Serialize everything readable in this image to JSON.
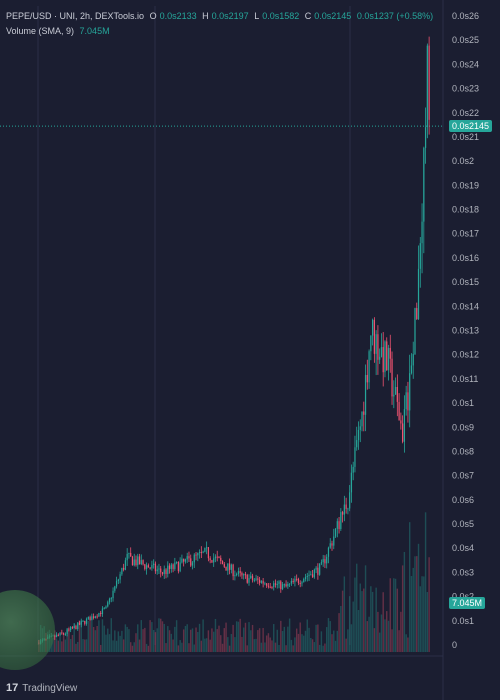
{
  "legend": {
    "symbol": "PEPE/USD · UNI, 2h, DEXTools.io",
    "open_label": "O",
    "open": "0.0s2133",
    "high_label": "H",
    "high": "0.0s2197",
    "low_label": "L",
    "low": "0.0s1582",
    "close_label": "C",
    "close": "0.0s2145",
    "change": "0.0s1237 (+0.58%)",
    "volume_label": "Volume (SMA, 9)",
    "volume_value": "7.045M"
  },
  "badges": {
    "price": "0.0s2145",
    "volume": "7.045M"
  },
  "branding": {
    "mark": "17",
    "name": "TradingView"
  },
  "colors": {
    "up": "#26a69a",
    "down": "#ef5370",
    "background": "#1b1e31",
    "grid": "#2b2f48"
  },
  "chart_data": {
    "type": "candlestick",
    "y_axis_ticks": [
      "0.0s26",
      "0.0s25",
      "0.0s24",
      "0.0s23",
      "0.0s22",
      "0.0s21",
      "0.0s2",
      "0.0s19",
      "0.0s18",
      "0.0s17",
      "0.0s16",
      "0.0s15",
      "0.0s14",
      "0.0s13",
      "0.0s12",
      "0.0s11",
      "0.0s1",
      "0.0s9",
      "0.0s8",
      "0.0s7",
      "0.0s6",
      "0.0s5",
      "0.0s4",
      "0.0s3",
      "0.0s2",
      "0.0s1",
      "0"
    ],
    "ylim": [
      0,
      26
    ],
    "y_unit_note": "values in units of 0.0s01 (price axis ×1e-9)",
    "last_close": 21.45,
    "volume_last": "7.045M",
    "segments": [
      {
        "from": 0,
        "to": 15,
        "start": 0.1,
        "end": 0.5
      },
      {
        "from": 15,
        "to": 38,
        "start": 0.5,
        "end": 1.5
      },
      {
        "from": 38,
        "to": 50,
        "start": 1.5,
        "end": 3.6
      },
      {
        "from": 50,
        "to": 70,
        "start": 3.6,
        "end": 3.0
      },
      {
        "from": 70,
        "to": 95,
        "start": 3.0,
        "end": 3.8
      },
      {
        "from": 95,
        "to": 115,
        "start": 3.8,
        "end": 2.8
      },
      {
        "from": 115,
        "to": 140,
        "start": 2.8,
        "end": 2.4
      },
      {
        "from": 140,
        "to": 160,
        "start": 2.4,
        "end": 3.2
      },
      {
        "from": 160,
        "to": 175,
        "start": 3.2,
        "end": 6.0
      },
      {
        "from": 175,
        "to": 183,
        "start": 6.0,
        "end": 9.5
      },
      {
        "from": 183,
        "to": 188,
        "start": 9.5,
        "end": 13.0
      },
      {
        "from": 188,
        "to": 198,
        "start": 13.0,
        "end": 11.5
      },
      {
        "from": 198,
        "to": 206,
        "start": 11.5,
        "end": 8.8
      },
      {
        "from": 206,
        "to": 212,
        "start": 8.8,
        "end": 12.0
      },
      {
        "from": 212,
        "to": 216,
        "start": 12.0,
        "end": 17.0
      },
      {
        "from": 216,
        "to": 220,
        "start": 17.0,
        "end": 23.5
      },
      {
        "from": 220,
        "to": 222,
        "start": 23.5,
        "end": 21.45
      }
    ],
    "candle_count": 222
  }
}
